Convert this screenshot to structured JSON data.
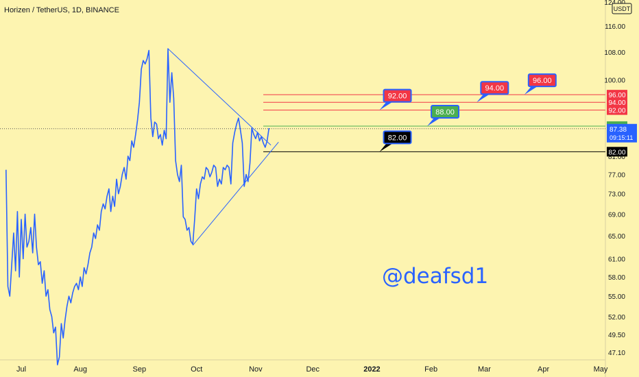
{
  "header": {
    "title": "Horizen / TetherUS, 1D, BINANCE"
  },
  "watermark": "@deafsd1",
  "currency": "USDT",
  "colors": {
    "background": "#fdf4b0",
    "price_line": "#2962ff",
    "resistance": "#f23645",
    "support_green": "#4caf50",
    "support_black": "#000000",
    "text": "#131722"
  },
  "chart_data": {
    "type": "line",
    "title": "Horizen / TetherUS, 1D, BINANCE",
    "y_scale": "log",
    "ylim": [
      45.5,
      124
    ],
    "y_ticks": [
      124.0,
      116.0,
      108.0,
      100.0,
      81.0,
      77.0,
      73.0,
      69.0,
      65.0,
      61.0,
      58.0,
      55.0,
      52.0,
      49.5,
      47.1
    ],
    "x_tick_labels": [
      "Jul",
      "Aug",
      "Sep",
      "Oct",
      "Nov",
      "Dec",
      "2022",
      "Feb",
      "Mar",
      "Apr",
      "May"
    ],
    "x_tick_dates": [
      "2021-07-01",
      "2021-08-01",
      "2021-09-01",
      "2021-10-01",
      "2021-11-01",
      "2021-12-01",
      "2022-01-01",
      "2022-02-01",
      "2022-03-01",
      "2022-04-01",
      "2022-05-01"
    ],
    "series": [
      {
        "points": [
          [
            "2021-06-23",
            78.0
          ],
          [
            "2021-06-24",
            56.5
          ],
          [
            "2021-06-25",
            55.0
          ],
          [
            "2021-06-26",
            60.0
          ],
          [
            "2021-06-27",
            65.5
          ],
          [
            "2021-06-28",
            59.0
          ],
          [
            "2021-06-29",
            69.5
          ],
          [
            "2021-06-30",
            58.0
          ],
          [
            "2021-07-01",
            68.0
          ],
          [
            "2021-07-02",
            61.0
          ],
          [
            "2021-07-03",
            69.0
          ],
          [
            "2021-07-04",
            63.0
          ],
          [
            "2021-07-05",
            64.0
          ],
          [
            "2021-07-06",
            66.5
          ],
          [
            "2021-07-07",
            62.0
          ],
          [
            "2021-07-08",
            69.0
          ],
          [
            "2021-07-09",
            63.0
          ],
          [
            "2021-07-10",
            60.0
          ],
          [
            "2021-07-11",
            60.5
          ],
          [
            "2021-07-12",
            57.0
          ],
          [
            "2021-07-13",
            59.0
          ],
          [
            "2021-07-14",
            55.0
          ],
          [
            "2021-07-15",
            56.0
          ],
          [
            "2021-07-16",
            53.0
          ],
          [
            "2021-07-17",
            52.0
          ],
          [
            "2021-07-18",
            49.7
          ],
          [
            "2021-07-19",
            50.5
          ],
          [
            "2021-07-20",
            45.5
          ],
          [
            "2021-07-21",
            46.5
          ],
          [
            "2021-07-22",
            51.0
          ],
          [
            "2021-07-23",
            49.0
          ],
          [
            "2021-07-24",
            51.5
          ],
          [
            "2021-07-25",
            53.5
          ],
          [
            "2021-07-26",
            55.0
          ],
          [
            "2021-07-27",
            54.0
          ],
          [
            "2021-07-28",
            55.5
          ],
          [
            "2021-07-29",
            56.5
          ],
          [
            "2021-07-30",
            57.0
          ],
          [
            "2021-07-31",
            56.0
          ],
          [
            "2021-08-01",
            58.0
          ],
          [
            "2021-08-02",
            56.5
          ],
          [
            "2021-08-03",
            59.5
          ],
          [
            "2021-08-04",
            58.5
          ],
          [
            "2021-08-05",
            60.0
          ],
          [
            "2021-08-06",
            62.0
          ],
          [
            "2021-08-07",
            63.0
          ],
          [
            "2021-08-08",
            65.5
          ],
          [
            "2021-08-09",
            64.5
          ],
          [
            "2021-08-10",
            67.0
          ],
          [
            "2021-08-11",
            66.0
          ],
          [
            "2021-08-12",
            69.5
          ],
          [
            "2021-08-13",
            71.0
          ],
          [
            "2021-08-14",
            70.0
          ],
          [
            "2021-08-15",
            72.5
          ],
          [
            "2021-08-16",
            74.0
          ],
          [
            "2021-08-17",
            69.5
          ],
          [
            "2021-08-18",
            72.5
          ],
          [
            "2021-08-19",
            70.5
          ],
          [
            "2021-08-20",
            76.0
          ],
          [
            "2021-08-21",
            73.0
          ],
          [
            "2021-08-22",
            74.5
          ],
          [
            "2021-08-23",
            77.0
          ],
          [
            "2021-08-24",
            78.5
          ],
          [
            "2021-08-25",
            76.0
          ],
          [
            "2021-08-26",
            81.0
          ],
          [
            "2021-08-27",
            80.0
          ],
          [
            "2021-08-28",
            84.5
          ],
          [
            "2021-08-29",
            83.0
          ],
          [
            "2021-08-30",
            86.0
          ],
          [
            "2021-08-31",
            89.5
          ],
          [
            "2021-09-01",
            94.0
          ],
          [
            "2021-09-02",
            103.0
          ],
          [
            "2021-09-03",
            105.5
          ],
          [
            "2021-09-04",
            104.5
          ],
          [
            "2021-09-05",
            106.0
          ],
          [
            "2021-09-06",
            108.5
          ],
          [
            "2021-09-07",
            90.0
          ],
          [
            "2021-09-08",
            85.5
          ],
          [
            "2021-09-09",
            89.0
          ],
          [
            "2021-09-10",
            88.5
          ],
          [
            "2021-09-11",
            85.0
          ],
          [
            "2021-09-12",
            86.0
          ],
          [
            "2021-09-13",
            83.5
          ],
          [
            "2021-09-14",
            87.0
          ],
          [
            "2021-09-15",
            85.0
          ],
          [
            "2021-09-16",
            109.0
          ],
          [
            "2021-09-17",
            94.0
          ],
          [
            "2021-09-18",
            102.0
          ],
          [
            "2021-09-19",
            95.0
          ],
          [
            "2021-09-20",
            80.0
          ],
          [
            "2021-09-21",
            77.0
          ],
          [
            "2021-09-22",
            75.5
          ],
          [
            "2021-09-23",
            79.0
          ],
          [
            "2021-09-24",
            68.5
          ],
          [
            "2021-09-25",
            68.0
          ],
          [
            "2021-09-26",
            66.0
          ],
          [
            "2021-09-27",
            66.5
          ],
          [
            "2021-09-28",
            64.0
          ],
          [
            "2021-09-29",
            63.5
          ],
          [
            "2021-09-30",
            68.0
          ],
          [
            "2021-10-01",
            74.0
          ],
          [
            "2021-10-02",
            72.0
          ],
          [
            "2021-10-03",
            75.0
          ],
          [
            "2021-10-04",
            76.5
          ],
          [
            "2021-10-05",
            76.0
          ],
          [
            "2021-10-06",
            78.5
          ],
          [
            "2021-10-07",
            78.0
          ],
          [
            "2021-10-08",
            76.5
          ],
          [
            "2021-10-09",
            77.5
          ],
          [
            "2021-10-10",
            79.0
          ],
          [
            "2021-10-11",
            78.5
          ],
          [
            "2021-10-12",
            74.5
          ],
          [
            "2021-10-13",
            76.0
          ],
          [
            "2021-10-14",
            75.0
          ],
          [
            "2021-10-15",
            78.5
          ],
          [
            "2021-10-16",
            78.0
          ],
          [
            "2021-10-17",
            79.0
          ],
          [
            "2021-10-18",
            78.5
          ],
          [
            "2021-10-19",
            75.0
          ],
          [
            "2021-10-20",
            84.0
          ],
          [
            "2021-10-21",
            86.5
          ],
          [
            "2021-10-22",
            88.5
          ],
          [
            "2021-10-23",
            90.0
          ],
          [
            "2021-10-24",
            87.0
          ],
          [
            "2021-10-25",
            84.0
          ],
          [
            "2021-10-26",
            74.5
          ],
          [
            "2021-10-27",
            77.0
          ],
          [
            "2021-10-28",
            75.5
          ],
          [
            "2021-10-29",
            79.5
          ],
          [
            "2021-10-30",
            87.5
          ],
          [
            "2021-10-31",
            86.0
          ],
          [
            "2021-11-01",
            85.0
          ],
          [
            "2021-11-02",
            86.5
          ],
          [
            "2021-11-03",
            84.5
          ],
          [
            "2021-11-04",
            85.5
          ],
          [
            "2021-11-05",
            84.0
          ],
          [
            "2021-11-06",
            83.0
          ],
          [
            "2021-11-07",
            84.5
          ],
          [
            "2021-11-08",
            87.5
          ]
        ]
      }
    ],
    "trendlines": [
      {
        "from": [
          "2021-09-16",
          109.0
        ],
        "to": [
          "2021-11-09",
          83.5
        ]
      },
      {
        "from": [
          "2021-09-29",
          63.3
        ],
        "to": [
          "2021-11-13",
          84.2
        ]
      }
    ],
    "horizontal_lines": [
      {
        "value": 96.0,
        "color": "#f23645",
        "from": "2021-11-05"
      },
      {
        "value": 94.0,
        "color": "#f23645",
        "from": "2021-11-05"
      },
      {
        "value": 92.0,
        "color": "#f23645",
        "from": "2021-11-05"
      },
      {
        "value": 88.0,
        "color": "#4caf50",
        "from": "2021-11-05"
      },
      {
        "value": 82.0,
        "color": "#000000",
        "from": "2021-11-05"
      }
    ],
    "current_price": {
      "value": 87.38,
      "countdown": "09:15:11"
    },
    "callouts": [
      {
        "text": "92.00",
        "anchor": [
          "2022-01-05",
          92.0
        ],
        "color": "#f23645"
      },
      {
        "text": "88.00",
        "anchor": [
          "2022-01-30",
          88.0
        ],
        "color": "#4caf50"
      },
      {
        "text": "94.00",
        "anchor": [
          "2022-02-25",
          94.0
        ],
        "color": "#f23645"
      },
      {
        "text": "96.00",
        "anchor": [
          "2022-03-22",
          96.0
        ],
        "color": "#f23645"
      },
      {
        "text": "82.00",
        "anchor": [
          "2022-01-05",
          82.0
        ],
        "color": "#000000"
      }
    ]
  }
}
